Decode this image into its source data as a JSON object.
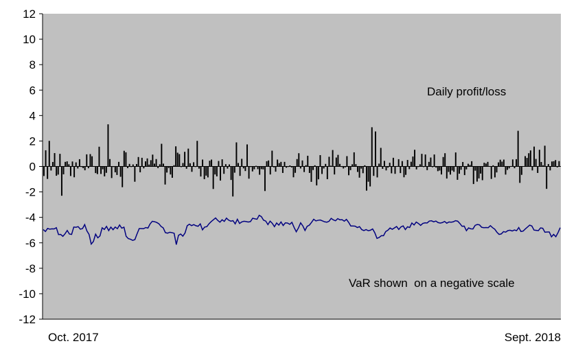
{
  "chart_data": {
    "type": "bar+line",
    "x_start_label": "Oct. 2017",
    "x_end_label": "Sept. 2018",
    "ylim": [
      -12,
      12
    ],
    "yticks": [
      "12",
      "10",
      "8",
      "6",
      "4",
      "2",
      "0",
      "-2",
      "-4",
      "-6",
      "-8",
      "-10",
      "-12"
    ],
    "grid": false,
    "plot_background": "#c0c0c0",
    "annotations": {
      "bars": "Daily profit/loss",
      "line": "VaR shown  on a negative scale"
    },
    "series": [
      {
        "type": "bar",
        "color": "#000000",
        "values": [
          -0.75,
          1.27,
          -0.98,
          2.01,
          -0.32,
          0.35,
          1.05,
          -0.73,
          -0.64,
          0.99,
          -2.3,
          -0.62,
          0.36,
          0.4,
          0.17,
          -0.75,
          0.39,
          -0.85,
          0.32,
          -0.16,
          0.57,
          -0.01,
          -0.13,
          -0.3,
          0.95,
          -0.14,
          0.97,
          0.8,
          0.03,
          -0.52,
          -0.6,
          1.55,
          -0.59,
          -0.22,
          -0.78,
          -0.5,
          3.31,
          0.58,
          -0.91,
          -0.01,
          -0.46,
          -0.67,
          0.36,
          -0.81,
          -1.63,
          1.23,
          1.11,
          -0.13,
          0.2,
          -0.02,
          0.16,
          -1.2,
          0.19,
          0.74,
          -0.46,
          0.68,
          -0.15,
          0.4,
          0.63,
          0.15,
          0.49,
          0.93,
          0.22,
          0.58,
          -0.13,
          0.17,
          1.78,
          0.22,
          -1.42,
          -0.48,
          -0.12,
          -0.63,
          -0.89,
          0.1,
          1.58,
          1.08,
          0.97,
          -0.05,
          0.27,
          1.15,
          -0.18,
          1.4,
          0.25,
          -0.42,
          0.33,
          -0.01,
          2.01,
          -0.17,
          -0.79,
          0.54,
          -1.0,
          -0.72,
          -0.86,
          0.45,
          0.54,
          -1.77,
          -0.63,
          -0.78,
          0.43,
          -1.11,
          0.56,
          -0.58,
          0.18,
          -0.17,
          0.16,
          -1.06,
          -2.36,
          -0.49,
          1.89,
          0.27,
          -0.74,
          0.6,
          -0.15,
          -0.36,
          1.73,
          -0.96,
          0.0,
          -0.39,
          -0.22,
          0.05,
          -0.21,
          -0.65,
          -0.21,
          -0.23,
          -1.93,
          0.41,
          0.47,
          -0.63,
          1.24,
          -0.07,
          -0.41,
          0.54,
          0.26,
          0.36,
          -0.51,
          0.36,
          -0.1,
          -0.01,
          0.08,
          -0.08,
          -0.85,
          -0.5,
          0.58,
          1.04,
          -0.16,
          0.47,
          -0.44,
          0.1,
          0.84,
          -0.51,
          -1.21,
          -0.28,
          0.09,
          -1.49,
          -1.01,
          0.89,
          -0.59,
          -0.16,
          0.2,
          -1.0,
          0.76,
          0.06,
          1.29,
          -0.63,
          0.7,
          0.91,
          0.2,
          -0.03,
          -0.16,
          -0.07,
          0.81,
          -0.69,
          -0.29,
          0.17,
          1.11,
          0.18,
          -0.43,
          -0.88,
          -0.17,
          -0.53,
          0.09,
          -1.9,
          -1.2,
          -1.57,
          3.08,
          -0.74,
          2.75,
          -0.86,
          0.22,
          1.46,
          -0.19,
          0.44,
          -0.31,
          -0.09,
          0.29,
          -0.54,
          0.68,
          -0.58,
          0.03,
          0.57,
          -0.52,
          0.42,
          -0.85,
          -0.66,
          0.51,
          -0.21,
          0.37,
          0.78,
          1.31,
          -0.23,
          -0.01,
          0.17,
          0.99,
          -0.05,
          0.94,
          -0.29,
          0.36,
          0.7,
          -0.06,
          0.94,
          -0.09,
          -0.37,
          -0.32,
          -0.63,
          0.74,
          1.04,
          -0.95,
          -0.43,
          -0.64,
          -0.32,
          -0.42,
          1.1,
          -1.05,
          -0.57,
          -0.26,
          0.35,
          -0.68,
          -0.23,
          0.21,
          0.12,
          0.41,
          -1.38,
          -0.33,
          -1.19,
          -0.94,
          -0.56,
          -1.08,
          0.29,
          0.23,
          0.36,
          0.03,
          -0.98,
          0.09,
          -0.86,
          -0.47,
          0.32,
          0.53,
          0.38,
          0.54,
          -0.64,
          -0.27,
          -0.15,
          0.03,
          0.55,
          -0.14,
          0.57,
          2.8,
          -1.29,
          -0.66,
          0.02,
          0.81,
          0.67,
          1.04,
          1.26,
          -0.31,
          1.56,
          0.59,
          -0.51,
          1.31,
          0.35,
          0.09,
          1.63,
          -1.76,
          0.19,
          -0.31,
          0.39,
          0.41,
          0.5,
          -0.07,
          0.42
        ]
      },
      {
        "type": "line",
        "color": "#00007f",
        "values": [
          -4.96,
          -5.11,
          -4.87,
          -4.93,
          -4.9,
          -4.91,
          -4.81,
          -5.35,
          -5.34,
          -5.49,
          -5.29,
          -5.03,
          -5.31,
          -5.34,
          -4.76,
          -4.78,
          -4.73,
          -4.93,
          -4.88,
          -4.57,
          -5.06,
          -5.34,
          -6.1,
          -5.89,
          -5.32,
          -5.61,
          -5.46,
          -4.82,
          -4.95,
          -4.71,
          -5.04,
          -4.77,
          -4.97,
          -4.76,
          -4.89,
          -4.6,
          -4.85,
          -4.77,
          -5.49,
          -5.67,
          -5.72,
          -5.81,
          -5.75,
          -5.3,
          -4.88,
          -4.88,
          -4.89,
          -4.8,
          -4.84,
          -4.51,
          -4.31,
          -4.34,
          -4.4,
          -4.5,
          -4.71,
          -4.83,
          -5.2,
          -5.24,
          -5.17,
          -5.2,
          -5.25,
          -6.14,
          -5.41,
          -5.31,
          -5.48,
          -5.23,
          -4.66,
          -4.54,
          -4.65,
          -4.57,
          -4.66,
          -4.7,
          -4.51,
          -4.98,
          -4.76,
          -4.73,
          -4.5,
          -4.33,
          -4.19,
          -4.05,
          -4.24,
          -4.38,
          -4.19,
          -4.32,
          -4.06,
          -4.22,
          -4.3,
          -4.26,
          -4.51,
          -4.15,
          -4.48,
          -4.36,
          -4.31,
          -4.33,
          -4.37,
          -4.33,
          -4.07,
          -4.11,
          -4.15,
          -3.84,
          -3.94,
          -4.22,
          -4.29,
          -4.57,
          -4.3,
          -4.47,
          -4.73,
          -4.44,
          -4.61,
          -4.36,
          -4.64,
          -4.43,
          -4.45,
          -4.55,
          -4.39,
          -4.79,
          -5.13,
          -4.83,
          -4.43,
          -4.67,
          -5.03,
          -4.7,
          -4.61,
          -4.39,
          -4.15,
          -4.28,
          -4.23,
          -4.21,
          -4.28,
          -4.35,
          -4.38,
          -4.31,
          -4.08,
          -4.2,
          -4.27,
          -4.1,
          -4.19,
          -4.18,
          -4.3,
          -4.16,
          -4.39,
          -4.68,
          -4.68,
          -4.69,
          -4.8,
          -4.73,
          -4.96,
          -5.04,
          -4.96,
          -5.05,
          -5.01,
          -4.91,
          -5.21,
          -5.65,
          -5.58,
          -5.44,
          -5.44,
          -5.12,
          -5.01,
          -4.83,
          -4.94,
          -4.83,
          -4.72,
          -4.95,
          -4.75,
          -4.67,
          -4.96,
          -4.74,
          -4.8,
          -4.44,
          -4.6,
          -4.37,
          -4.48,
          -4.63,
          -4.48,
          -4.43,
          -4.44,
          -4.29,
          -4.27,
          -4.35,
          -4.29,
          -4.41,
          -4.45,
          -4.41,
          -4.32,
          -4.46,
          -4.36,
          -4.38,
          -4.35,
          -4.26,
          -4.3,
          -4.48,
          -4.7,
          -4.69,
          -5.05,
          -4.83,
          -4.9,
          -4.91,
          -4.63,
          -4.56,
          -4.59,
          -4.78,
          -4.81,
          -4.8,
          -4.81,
          -4.65,
          -4.81,
          -4.93,
          -5.17,
          -5.34,
          -5.3,
          -5.12,
          -5.16,
          -5.04,
          -5.01,
          -5.07,
          -4.99,
          -5.05,
          -4.8,
          -5.11,
          -5.08,
          -4.91,
          -4.76,
          -4.61,
          -4.68,
          -5.0,
          -5.02,
          -5.04,
          -4.83,
          -4.86,
          -5.17,
          -5.15,
          -5.15,
          -5.53,
          -5.34,
          -5.52,
          -5.2,
          -4.81
        ]
      }
    ]
  }
}
